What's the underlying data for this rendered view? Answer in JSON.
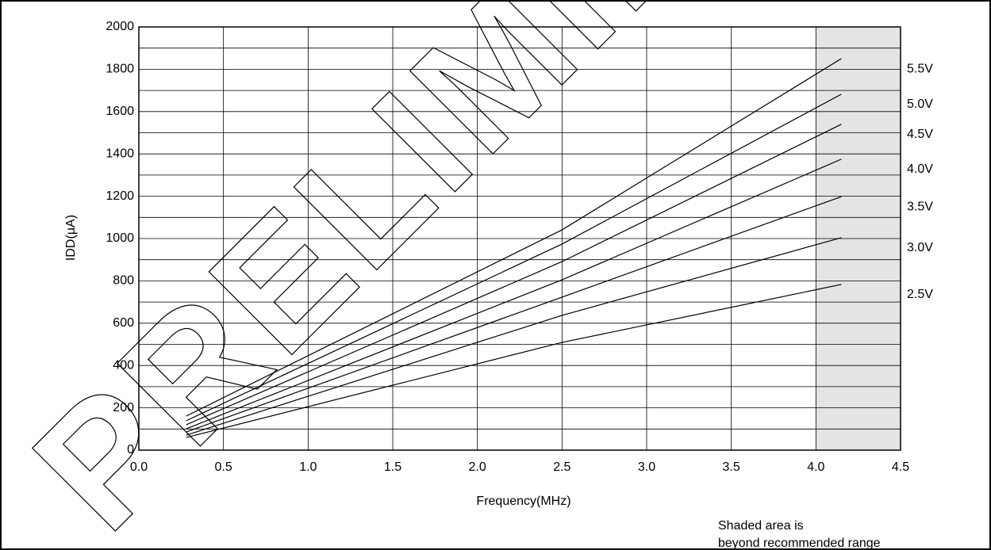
{
  "chart_data": {
    "type": "line",
    "watermark": "PRELIMINARY",
    "xlabel": "Frequency(MHz)",
    "ylabel": "IDD(µA)",
    "note": [
      "Shaded area is",
      "beyond recommended range"
    ],
    "x": [
      0.28,
      2.5,
      4.15
    ],
    "series": [
      {
        "name": "5.5V",
        "color": "#000000",
        "values": [
          161,
          1041,
          1850
        ]
      },
      {
        "name": "5.0V",
        "color": "#000000",
        "values": [
          139,
          974,
          1682
        ]
      },
      {
        "name": "4.5V",
        "color": "#000000",
        "values": [
          120,
          891,
          1540
        ]
      },
      {
        "name": "4.0V",
        "color": "#000000",
        "values": [
          101,
          805,
          1375
        ]
      },
      {
        "name": "3.5V",
        "color": "#000000",
        "values": [
          86,
          723,
          1198
        ]
      },
      {
        "name": "3.0V",
        "color": "#000000",
        "values": [
          71,
          637,
          1004
        ]
      },
      {
        "name": "2.5V",
        "color": "#000000",
        "values": [
          60,
          509,
          783
        ]
      }
    ],
    "xlim": [
      0,
      4.5
    ],
    "xticks": [
      {
        "value": 0,
        "label": "0.0"
      },
      0.5,
      {
        "value": 1,
        "label": "1.0"
      },
      1.5,
      {
        "value": 2,
        "label": "2.0"
      },
      2.5,
      {
        "value": 3,
        "label": "3.0"
      },
      3.5,
      {
        "value": 4,
        "label": "4.0"
      },
      4.5
    ],
    "ylim": [
      0,
      2000
    ],
    "yticks": [
      0,
      200,
      400,
      600,
      800,
      1000,
      1200,
      1400,
      1600,
      1800,
      2000
    ],
    "y_minor_ticks": [
      100,
      300,
      500,
      700,
      900,
      1100,
      1300,
      1500,
      1700,
      1900
    ],
    "shaded_xrange": [
      4,
      4.5
    ],
    "shade_color": "#e4e4e4",
    "grid": true
  }
}
